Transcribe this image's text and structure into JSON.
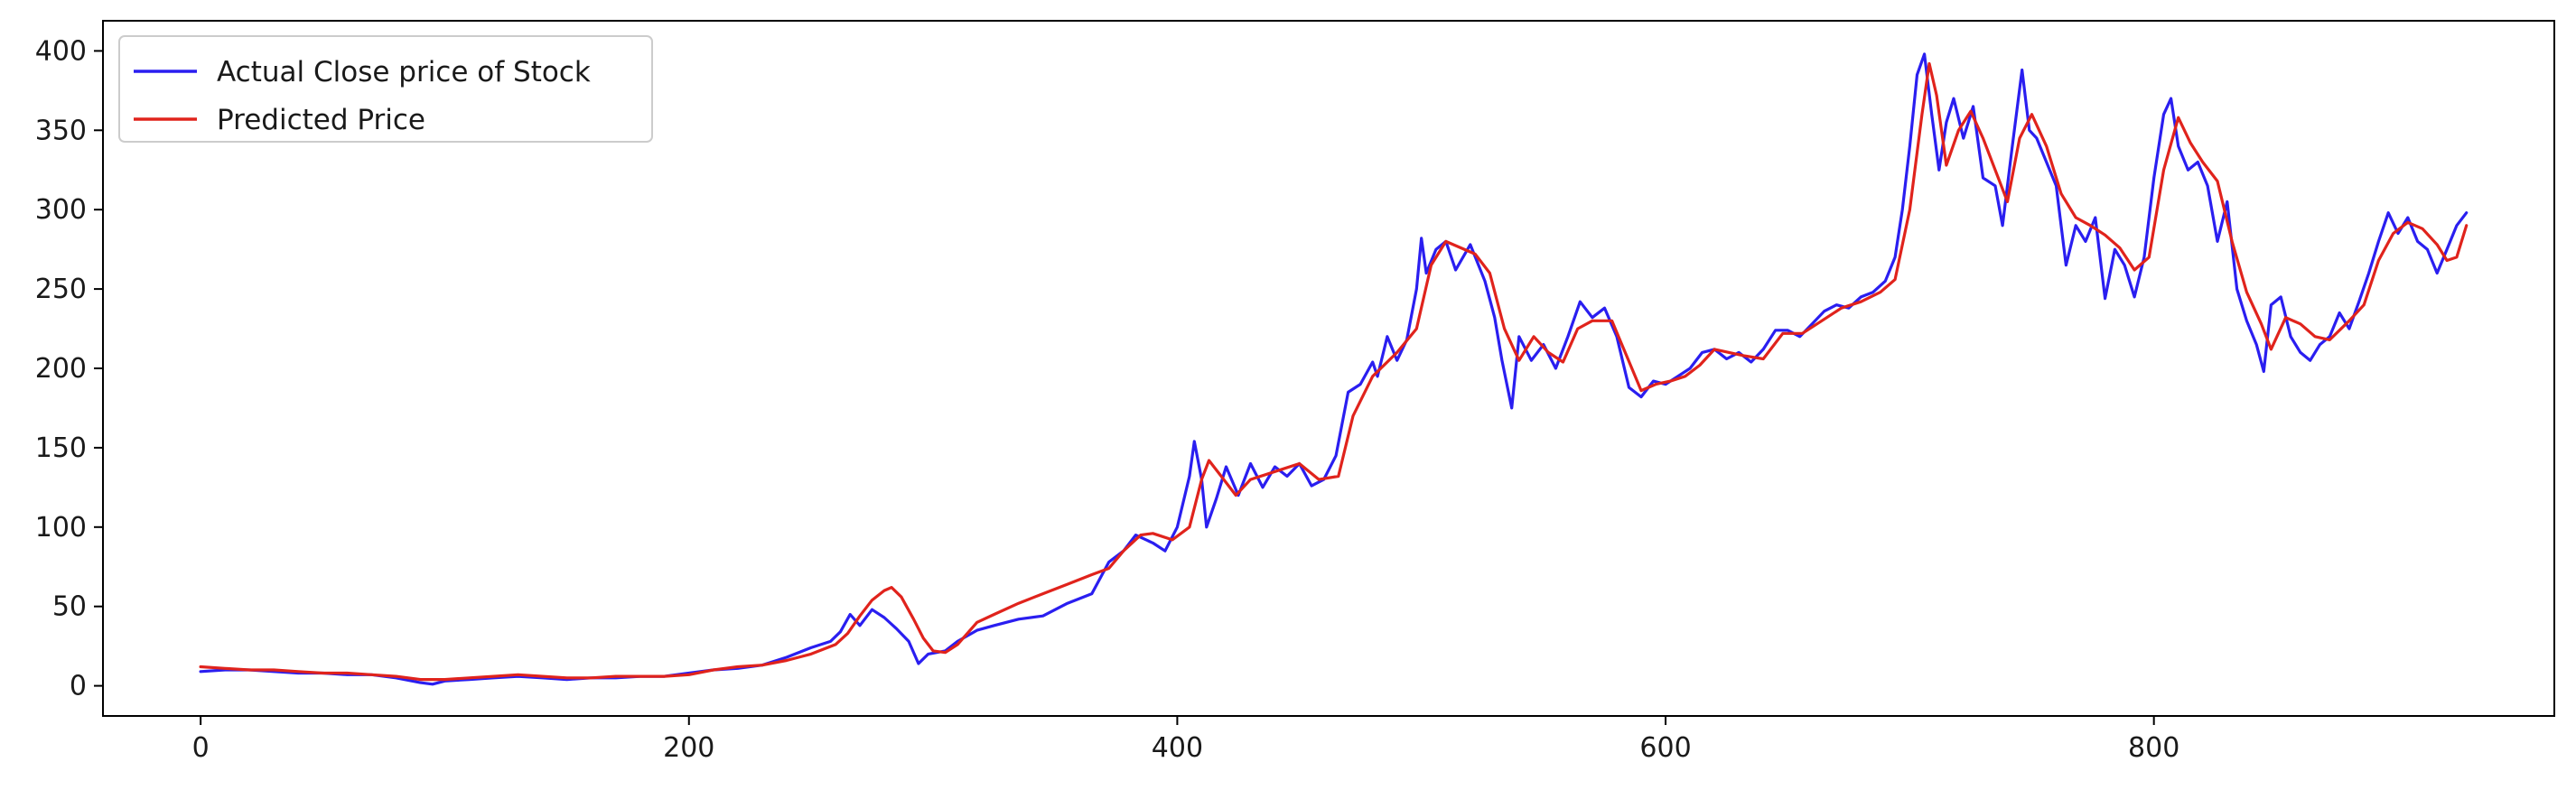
{
  "chart_data": {
    "type": "line",
    "title": "",
    "xlabel": "",
    "ylabel": "",
    "xlim": [
      -40,
      964
    ],
    "ylim": [
      -19,
      419
    ],
    "x_ticks": [
      0,
      200,
      400,
      600,
      800
    ],
    "y_ticks": [
      0,
      50,
      100,
      150,
      200,
      250,
      300,
      350,
      400
    ],
    "grid": false,
    "legend_position": "top-left",
    "series": [
      {
        "name": "Actual Close price of Stock",
        "color": "#2a1ef0",
        "points": [
          [
            0,
            9
          ],
          [
            10,
            10
          ],
          [
            20,
            10
          ],
          [
            30,
            9
          ],
          [
            40,
            8
          ],
          [
            50,
            8
          ],
          [
            60,
            7
          ],
          [
            70,
            7
          ],
          [
            80,
            5
          ],
          [
            90,
            2
          ],
          [
            95,
            1
          ],
          [
            100,
            3
          ],
          [
            110,
            4
          ],
          [
            120,
            5
          ],
          [
            130,
            6
          ],
          [
            140,
            5
          ],
          [
            150,
            4
          ],
          [
            160,
            5
          ],
          [
            170,
            5
          ],
          [
            180,
            6
          ],
          [
            190,
            6
          ],
          [
            200,
            8
          ],
          [
            210,
            10
          ],
          [
            220,
            11
          ],
          [
            230,
            13
          ],
          [
            240,
            18
          ],
          [
            250,
            24
          ],
          [
            258,
            28
          ],
          [
            262,
            34
          ],
          [
            266,
            45
          ],
          [
            270,
            38
          ],
          [
            275,
            48
          ],
          [
            280,
            43
          ],
          [
            285,
            36
          ],
          [
            290,
            28
          ],
          [
            294,
            14
          ],
          [
            298,
            20
          ],
          [
            305,
            22
          ],
          [
            310,
            28
          ],
          [
            318,
            35
          ],
          [
            325,
            38
          ],
          [
            335,
            42
          ],
          [
            345,
            44
          ],
          [
            355,
            52
          ],
          [
            365,
            58
          ],
          [
            372,
            78
          ],
          [
            378,
            85
          ],
          [
            383,
            95
          ],
          [
            390,
            90
          ],
          [
            395,
            85
          ],
          [
            400,
            100
          ],
          [
            405,
            132
          ],
          [
            407,
            154
          ],
          [
            410,
            130
          ],
          [
            412,
            100
          ],
          [
            416,
            118
          ],
          [
            420,
            138
          ],
          [
            425,
            120
          ],
          [
            430,
            140
          ],
          [
            435,
            125
          ],
          [
            440,
            138
          ],
          [
            445,
            132
          ],
          [
            450,
            140
          ],
          [
            455,
            126
          ],
          [
            460,
            130
          ],
          [
            465,
            145
          ],
          [
            470,
            185
          ],
          [
            475,
            190
          ],
          [
            480,
            204
          ],
          [
            482,
            195
          ],
          [
            486,
            220
          ],
          [
            490,
            205
          ],
          [
            494,
            218
          ],
          [
            498,
            250
          ],
          [
            500,
            282
          ],
          [
            502,
            260
          ],
          [
            506,
            275
          ],
          [
            510,
            280
          ],
          [
            514,
            262
          ],
          [
            520,
            278
          ],
          [
            526,
            255
          ],
          [
            530,
            232
          ],
          [
            533,
            205
          ],
          [
            537,
            175
          ],
          [
            540,
            220
          ],
          [
            545,
            205
          ],
          [
            550,
            215
          ],
          [
            555,
            200
          ],
          [
            560,
            220
          ],
          [
            565,
            242
          ],
          [
            570,
            232
          ],
          [
            575,
            238
          ],
          [
            580,
            220
          ],
          [
            585,
            188
          ],
          [
            590,
            182
          ],
          [
            595,
            192
          ],
          [
            600,
            190
          ],
          [
            605,
            195
          ],
          [
            610,
            200
          ],
          [
            615,
            210
          ],
          [
            620,
            212
          ],
          [
            625,
            206
          ],
          [
            630,
            210
          ],
          [
            635,
            204
          ],
          [
            640,
            212
          ],
          [
            645,
            224
          ],
          [
            650,
            224
          ],
          [
            655,
            220
          ],
          [
            660,
            228
          ],
          [
            665,
            236
          ],
          [
            670,
            240
          ],
          [
            675,
            238
          ],
          [
            680,
            245
          ],
          [
            685,
            248
          ],
          [
            690,
            255
          ],
          [
            694,
            270
          ],
          [
            697,
            300
          ],
          [
            700,
            340
          ],
          [
            703,
            385
          ],
          [
            706,
            398
          ],
          [
            709,
            360
          ],
          [
            712,
            325
          ],
          [
            715,
            355
          ],
          [
            718,
            370
          ],
          [
            722,
            345
          ],
          [
            726,
            365
          ],
          [
            730,
            320
          ],
          [
            735,
            315
          ],
          [
            738,
            290
          ],
          [
            742,
            340
          ],
          [
            746,
            388
          ],
          [
            749,
            350
          ],
          [
            752,
            345
          ],
          [
            756,
            330
          ],
          [
            760,
            315
          ],
          [
            764,
            265
          ],
          [
            768,
            290
          ],
          [
            772,
            280
          ],
          [
            776,
            295
          ],
          [
            780,
            244
          ],
          [
            784,
            275
          ],
          [
            788,
            265
          ],
          [
            792,
            245
          ],
          [
            796,
            270
          ],
          [
            800,
            320
          ],
          [
            804,
            360
          ],
          [
            807,
            370
          ],
          [
            810,
            340
          ],
          [
            814,
            325
          ],
          [
            818,
            330
          ],
          [
            822,
            315
          ],
          [
            826,
            280
          ],
          [
            830,
            305
          ],
          [
            834,
            250
          ],
          [
            838,
            230
          ],
          [
            842,
            215
          ],
          [
            845,
            198
          ],
          [
            848,
            240
          ],
          [
            852,
            245
          ],
          [
            856,
            220
          ],
          [
            860,
            210
          ],
          [
            864,
            205
          ],
          [
            868,
            215
          ],
          [
            872,
            220
          ],
          [
            876,
            235
          ],
          [
            880,
            225
          ],
          [
            884,
            242
          ],
          [
            888,
            260
          ],
          [
            892,
            280
          ],
          [
            896,
            298
          ],
          [
            900,
            285
          ],
          [
            904,
            295
          ],
          [
            908,
            280
          ],
          [
            912,
            275
          ],
          [
            916,
            260
          ],
          [
            920,
            275
          ],
          [
            924,
            290
          ],
          [
            928,
            298
          ]
        ]
      },
      {
        "name": "Predicted Price",
        "color": "#e0231c",
        "points": [
          [
            0,
            12
          ],
          [
            10,
            11
          ],
          [
            20,
            10
          ],
          [
            30,
            10
          ],
          [
            40,
            9
          ],
          [
            50,
            8
          ],
          [
            60,
            8
          ],
          [
            70,
            7
          ],
          [
            80,
            6
          ],
          [
            90,
            4
          ],
          [
            100,
            4
          ],
          [
            110,
            5
          ],
          [
            120,
            6
          ],
          [
            130,
            7
          ],
          [
            140,
            6
          ],
          [
            150,
            5
          ],
          [
            160,
            5
          ],
          [
            170,
            6
          ],
          [
            180,
            6
          ],
          [
            190,
            6
          ],
          [
            200,
            7
          ],
          [
            210,
            10
          ],
          [
            220,
            12
          ],
          [
            230,
            13
          ],
          [
            240,
            16
          ],
          [
            250,
            20
          ],
          [
            260,
            26
          ],
          [
            265,
            33
          ],
          [
            270,
            44
          ],
          [
            275,
            54
          ],
          [
            280,
            60
          ],
          [
            283,
            62
          ],
          [
            287,
            56
          ],
          [
            292,
            42
          ],
          [
            296,
            30
          ],
          [
            300,
            22
          ],
          [
            305,
            21
          ],
          [
            310,
            26
          ],
          [
            318,
            40
          ],
          [
            325,
            45
          ],
          [
            335,
            52
          ],
          [
            345,
            58
          ],
          [
            355,
            64
          ],
          [
            365,
            70
          ],
          [
            372,
            74
          ],
          [
            378,
            85
          ],
          [
            385,
            95
          ],
          [
            390,
            96
          ],
          [
            398,
            92
          ],
          [
            405,
            100
          ],
          [
            410,
            130
          ],
          [
            413,
            142
          ],
          [
            418,
            132
          ],
          [
            424,
            120
          ],
          [
            430,
            130
          ],
          [
            440,
            135
          ],
          [
            450,
            140
          ],
          [
            458,
            130
          ],
          [
            466,
            132
          ],
          [
            472,
            170
          ],
          [
            480,
            195
          ],
          [
            490,
            210
          ],
          [
            498,
            225
          ],
          [
            504,
            265
          ],
          [
            510,
            280
          ],
          [
            516,
            276
          ],
          [
            522,
            272
          ],
          [
            528,
            260
          ],
          [
            534,
            225
          ],
          [
            540,
            205
          ],
          [
            546,
            220
          ],
          [
            552,
            210
          ],
          [
            558,
            204
          ],
          [
            564,
            225
          ],
          [
            570,
            230
          ],
          [
            578,
            230
          ],
          [
            584,
            208
          ],
          [
            590,
            186
          ],
          [
            596,
            190
          ],
          [
            602,
            192
          ],
          [
            608,
            195
          ],
          [
            614,
            202
          ],
          [
            620,
            212
          ],
          [
            626,
            210
          ],
          [
            632,
            208
          ],
          [
            640,
            206
          ],
          [
            648,
            222
          ],
          [
            656,
            222
          ],
          [
            664,
            230
          ],
          [
            672,
            238
          ],
          [
            680,
            242
          ],
          [
            688,
            248
          ],
          [
            694,
            256
          ],
          [
            700,
            300
          ],
          [
            705,
            360
          ],
          [
            708,
            392
          ],
          [
            711,
            372
          ],
          [
            715,
            328
          ],
          [
            720,
            350
          ],
          [
            725,
            362
          ],
          [
            730,
            345
          ],
          [
            735,
            325
          ],
          [
            740,
            305
          ],
          [
            745,
            345
          ],
          [
            750,
            360
          ],
          [
            756,
            340
          ],
          [
            762,
            310
          ],
          [
            768,
            295
          ],
          [
            774,
            290
          ],
          [
            780,
            284
          ],
          [
            786,
            276
          ],
          [
            792,
            262
          ],
          [
            798,
            270
          ],
          [
            804,
            325
          ],
          [
            810,
            358
          ],
          [
            815,
            342
          ],
          [
            820,
            330
          ],
          [
            826,
            318
          ],
          [
            832,
            280
          ],
          [
            838,
            248
          ],
          [
            844,
            228
          ],
          [
            848,
            212
          ],
          [
            854,
            232
          ],
          [
            860,
            228
          ],
          [
            866,
            220
          ],
          [
            872,
            218
          ],
          [
            880,
            230
          ],
          [
            886,
            240
          ],
          [
            892,
            268
          ],
          [
            898,
            285
          ],
          [
            904,
            292
          ],
          [
            910,
            288
          ],
          [
            916,
            278
          ],
          [
            920,
            268
          ],
          [
            924,
            270
          ],
          [
            928,
            290
          ]
        ]
      }
    ]
  }
}
